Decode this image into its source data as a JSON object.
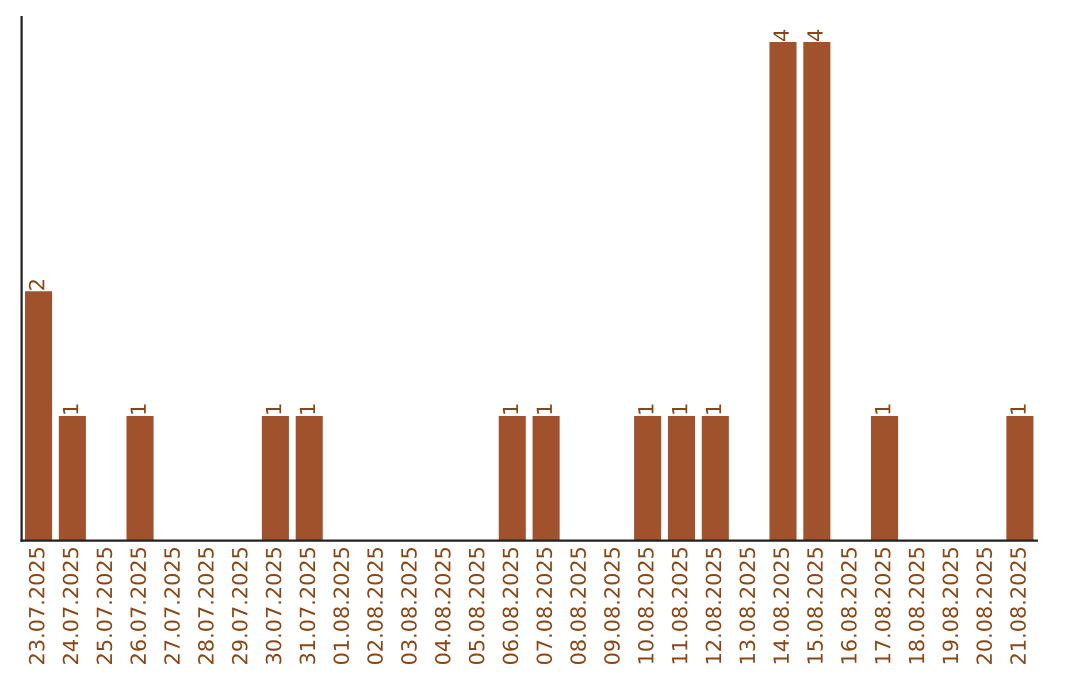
{
  "chart_data": {
    "type": "bar",
    "categories": [
      "23.07.2025",
      "24.07.2025",
      "25.07.2025",
      "26.07.2025",
      "27.07.2025",
      "28.07.2025",
      "29.07.2025",
      "30.07.2025",
      "31.07.2025",
      "01.08.2025",
      "02.08.2025",
      "03.08.2025",
      "04.08.2025",
      "05.08.2025",
      "06.08.2025",
      "07.08.2025",
      "08.08.2025",
      "09.08.2025",
      "10.08.2025",
      "11.08.2025",
      "12.08.2025",
      "13.08.2025",
      "14.08.2025",
      "15.08.2025",
      "16.08.2025",
      "17.08.2025",
      "18.08.2025",
      "19.08.2025",
      "20.08.2025",
      "21.08.2025"
    ],
    "values": [
      2,
      1,
      0,
      1,
      0,
      0,
      0,
      1,
      1,
      0,
      0,
      0,
      0,
      0,
      1,
      1,
      0,
      0,
      1,
      1,
      1,
      0,
      4,
      4,
      0,
      1,
      0,
      0,
      0,
      1
    ],
    "value_labels": [
      "2",
      "1",
      null,
      "1",
      null,
      null,
      null,
      "1",
      "1",
      null,
      null,
      null,
      null,
      null,
      "1",
      "1",
      null,
      null,
      "1",
      "1",
      "1",
      null,
      "4",
      "4",
      null,
      "1",
      null,
      null,
      null,
      "1"
    ],
    "color": "#a0522d",
    "ylim": [
      0,
      4.2
    ],
    "tick_labels": "x",
    "grid": false,
    "legend": false
  }
}
